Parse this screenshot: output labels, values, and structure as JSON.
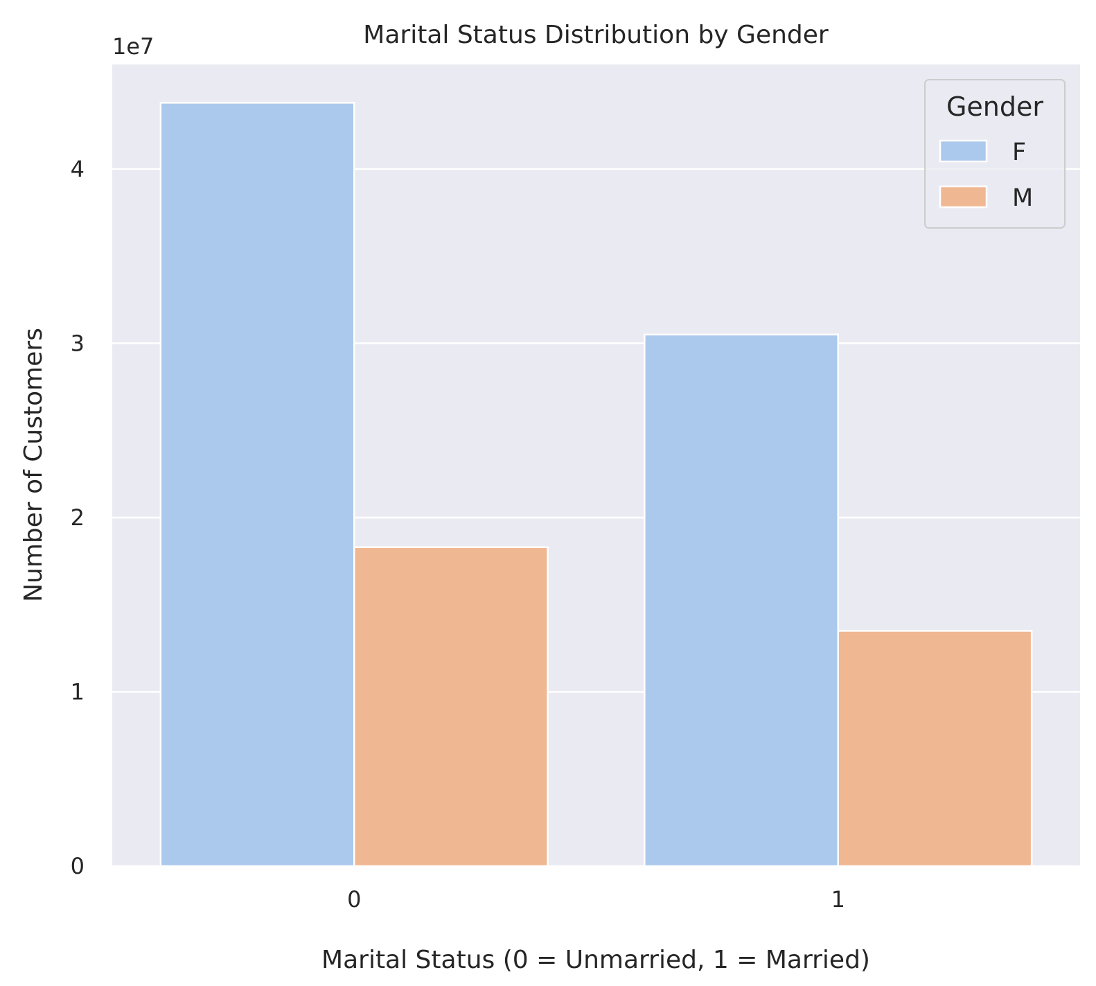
{
  "chart_data": {
    "type": "bar",
    "title": "Marital Status Distribution by Gender",
    "xlabel": "Marital Status (0 = Unmarried, 1 = Married)",
    "ylabel": "Number of Customers",
    "y_offset_label": "1e7",
    "categories": [
      "0",
      "1"
    ],
    "series": [
      {
        "name": "F",
        "color": "#abc9ec",
        "values": [
          43800000,
          30500000
        ]
      },
      {
        "name": "M",
        "color": "#f0b793",
        "values": [
          18300000,
          13500000
        ]
      }
    ],
    "ylim": [
      0,
      46000000
    ],
    "yticks": [
      0,
      10000000,
      20000000,
      30000000,
      40000000
    ],
    "ytick_labels": [
      "0",
      "1",
      "2",
      "3",
      "4"
    ],
    "legend": {
      "title": "Gender",
      "position": "upper right"
    },
    "grid": true,
    "background_color": "#eaeaf2"
  }
}
